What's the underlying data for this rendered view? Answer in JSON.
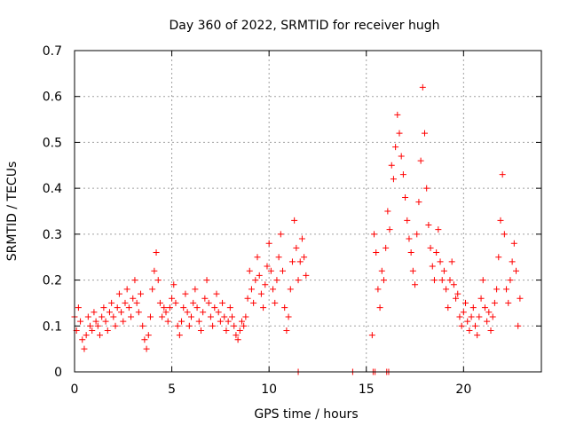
{
  "chart_data": {
    "type": "scatter",
    "title": "Day 360 of 2022, SRMTID for receiver hugh",
    "xlabel": "GPS time / hours",
    "ylabel": "SRMTID / TECUs",
    "xlim": [
      0,
      24
    ],
    "ylim": [
      0,
      0.7
    ],
    "xticks": [
      0,
      5,
      10,
      15,
      20
    ],
    "xtick_labels": [
      "0",
      "5",
      "10",
      "15",
      "20"
    ],
    "yticks": [
      0,
      0.1,
      0.2,
      0.3,
      0.4,
      0.5,
      0.6,
      0.7
    ],
    "ytick_labels": [
      "0",
      "0.1",
      "0.2",
      "0.3",
      "0.4",
      "0.5",
      "0.6",
      "0.7"
    ],
    "grid": true,
    "marker": "plus",
    "color": "#ff0000",
    "series": [
      {
        "name": "SRMTID",
        "points": [
          [
            0.0,
            0.12
          ],
          [
            0.1,
            0.09
          ],
          [
            0.2,
            0.14
          ],
          [
            0.3,
            0.11
          ],
          [
            0.4,
            0.07
          ],
          [
            0.5,
            0.05
          ],
          [
            0.6,
            0.08
          ],
          [
            0.7,
            0.12
          ],
          [
            0.8,
            0.1
          ],
          [
            0.9,
            0.09
          ],
          [
            1.0,
            0.13
          ],
          [
            1.1,
            0.11
          ],
          [
            1.2,
            0.1
          ],
          [
            1.3,
            0.08
          ],
          [
            1.4,
            0.12
          ],
          [
            1.5,
            0.14
          ],
          [
            1.6,
            0.11
          ],
          [
            1.7,
            0.09
          ],
          [
            1.8,
            0.13
          ],
          [
            1.9,
            0.15
          ],
          [
            2.0,
            0.12
          ],
          [
            2.1,
            0.1
          ],
          [
            2.2,
            0.14
          ],
          [
            2.3,
            0.17
          ],
          [
            2.4,
            0.13
          ],
          [
            2.5,
            0.11
          ],
          [
            2.6,
            0.15
          ],
          [
            2.7,
            0.18
          ],
          [
            2.8,
            0.14
          ],
          [
            2.9,
            0.12
          ],
          [
            3.0,
            0.16
          ],
          [
            3.1,
            0.2
          ],
          [
            3.2,
            0.15
          ],
          [
            3.3,
            0.13
          ],
          [
            3.4,
            0.17
          ],
          [
            3.5,
            0.1
          ],
          [
            3.6,
            0.07
          ],
          [
            3.7,
            0.05
          ],
          [
            3.8,
            0.08
          ],
          [
            3.9,
            0.12
          ],
          [
            4.0,
            0.18
          ],
          [
            4.1,
            0.22
          ],
          [
            4.2,
            0.26
          ],
          [
            4.3,
            0.2
          ],
          [
            4.4,
            0.15
          ],
          [
            4.5,
            0.12
          ],
          [
            4.6,
            0.14
          ],
          [
            4.7,
            0.13
          ],
          [
            4.8,
            0.11
          ],
          [
            4.9,
            0.14
          ],
          [
            5.0,
            0.16
          ],
          [
            5.1,
            0.19
          ],
          [
            5.2,
            0.15
          ],
          [
            5.3,
            0.1
          ],
          [
            5.4,
            0.08
          ],
          [
            5.5,
            0.11
          ],
          [
            5.6,
            0.14
          ],
          [
            5.7,
            0.17
          ],
          [
            5.8,
            0.13
          ],
          [
            5.9,
            0.1
          ],
          [
            6.0,
            0.12
          ],
          [
            6.1,
            0.15
          ],
          [
            6.2,
            0.18
          ],
          [
            6.3,
            0.14
          ],
          [
            6.4,
            0.11
          ],
          [
            6.5,
            0.09
          ],
          [
            6.6,
            0.13
          ],
          [
            6.7,
            0.16
          ],
          [
            6.8,
            0.2
          ],
          [
            6.9,
            0.15
          ],
          [
            7.0,
            0.12
          ],
          [
            7.1,
            0.1
          ],
          [
            7.2,
            0.14
          ],
          [
            7.3,
            0.17
          ],
          [
            7.4,
            0.13
          ],
          [
            7.5,
            0.11
          ],
          [
            7.6,
            0.15
          ],
          [
            7.7,
            0.12
          ],
          [
            7.8,
            0.09
          ],
          [
            7.9,
            0.11
          ],
          [
            8.0,
            0.14
          ],
          [
            8.1,
            0.12
          ],
          [
            8.2,
            0.1
          ],
          [
            8.3,
            0.08
          ],
          [
            8.4,
            0.07
          ],
          [
            8.5,
            0.09
          ],
          [
            8.6,
            0.11
          ],
          [
            8.7,
            0.1
          ],
          [
            8.8,
            0.12
          ],
          [
            8.9,
            0.16
          ],
          [
            9.0,
            0.22
          ],
          [
            9.1,
            0.18
          ],
          [
            9.2,
            0.15
          ],
          [
            9.3,
            0.2
          ],
          [
            9.4,
            0.25
          ],
          [
            9.5,
            0.21
          ],
          [
            9.6,
            0.17
          ],
          [
            9.7,
            0.14
          ],
          [
            9.8,
            0.19
          ],
          [
            9.9,
            0.23
          ],
          [
            10.0,
            0.28
          ],
          [
            10.1,
            0.22
          ],
          [
            10.2,
            0.18
          ],
          [
            10.3,
            0.15
          ],
          [
            10.4,
            0.2
          ],
          [
            10.5,
            0.25
          ],
          [
            10.6,
            0.3
          ],
          [
            10.7,
            0.22
          ],
          [
            10.8,
            0.14
          ],
          [
            10.9,
            0.09
          ],
          [
            11.0,
            0.12
          ],
          [
            11.1,
            0.18
          ],
          [
            11.2,
            0.24
          ],
          [
            11.3,
            0.33
          ],
          [
            11.4,
            0.27
          ],
          [
            11.5,
            0.2
          ],
          [
            11.6,
            0.24
          ],
          [
            11.7,
            0.29
          ],
          [
            11.8,
            0.25
          ],
          [
            11.9,
            0.21
          ],
          [
            11.5,
            0.0
          ],
          [
            14.3,
            0.0
          ],
          [
            15.35,
            0.0
          ],
          [
            15.45,
            0.0
          ],
          [
            16.05,
            0.0
          ],
          [
            16.15,
            0.0
          ],
          [
            15.3,
            0.08
          ],
          [
            15.4,
            0.3
          ],
          [
            15.5,
            0.26
          ],
          [
            15.6,
            0.18
          ],
          [
            15.7,
            0.14
          ],
          [
            15.8,
            0.22
          ],
          [
            15.9,
            0.2
          ],
          [
            16.0,
            0.27
          ],
          [
            16.1,
            0.35
          ],
          [
            16.2,
            0.31
          ],
          [
            16.3,
            0.45
          ],
          [
            16.4,
            0.42
          ],
          [
            16.5,
            0.49
          ],
          [
            16.6,
            0.56
          ],
          [
            16.7,
            0.52
          ],
          [
            16.8,
            0.47
          ],
          [
            16.9,
            0.43
          ],
          [
            17.0,
            0.38
          ],
          [
            17.1,
            0.33
          ],
          [
            17.2,
            0.29
          ],
          [
            17.3,
            0.26
          ],
          [
            17.4,
            0.22
          ],
          [
            17.5,
            0.19
          ],
          [
            17.6,
            0.3
          ],
          [
            17.7,
            0.37
          ],
          [
            17.8,
            0.46
          ],
          [
            17.9,
            0.62
          ],
          [
            18.0,
            0.52
          ],
          [
            18.1,
            0.4
          ],
          [
            18.2,
            0.32
          ],
          [
            18.3,
            0.27
          ],
          [
            18.4,
            0.23
          ],
          [
            18.5,
            0.2
          ],
          [
            18.6,
            0.26
          ],
          [
            18.7,
            0.31
          ],
          [
            18.8,
            0.24
          ],
          [
            18.9,
            0.2
          ],
          [
            19.0,
            0.22
          ],
          [
            19.1,
            0.18
          ],
          [
            19.2,
            0.14
          ],
          [
            19.3,
            0.2
          ],
          [
            19.4,
            0.24
          ],
          [
            19.5,
            0.19
          ],
          [
            19.6,
            0.16
          ],
          [
            19.7,
            0.17
          ],
          [
            19.8,
            0.12
          ],
          [
            19.9,
            0.1
          ],
          [
            20.0,
            0.13
          ],
          [
            20.1,
            0.15
          ],
          [
            20.2,
            0.11
          ],
          [
            20.3,
            0.09
          ],
          [
            20.4,
            0.12
          ],
          [
            20.5,
            0.14
          ],
          [
            20.6,
            0.1
          ],
          [
            20.7,
            0.08
          ],
          [
            20.8,
            0.12
          ],
          [
            20.9,
            0.16
          ],
          [
            21.0,
            0.2
          ],
          [
            21.1,
            0.14
          ],
          [
            21.2,
            0.11
          ],
          [
            21.3,
            0.13
          ],
          [
            21.4,
            0.09
          ],
          [
            21.5,
            0.12
          ],
          [
            21.6,
            0.15
          ],
          [
            21.7,
            0.18
          ],
          [
            21.8,
            0.25
          ],
          [
            21.9,
            0.33
          ],
          [
            22.0,
            0.43
          ],
          [
            22.1,
            0.3
          ],
          [
            22.2,
            0.18
          ],
          [
            22.3,
            0.15
          ],
          [
            22.4,
            0.2
          ],
          [
            22.5,
            0.24
          ],
          [
            22.6,
            0.28
          ],
          [
            22.7,
            0.22
          ],
          [
            22.8,
            0.1
          ],
          [
            22.9,
            0.16
          ]
        ]
      }
    ]
  }
}
